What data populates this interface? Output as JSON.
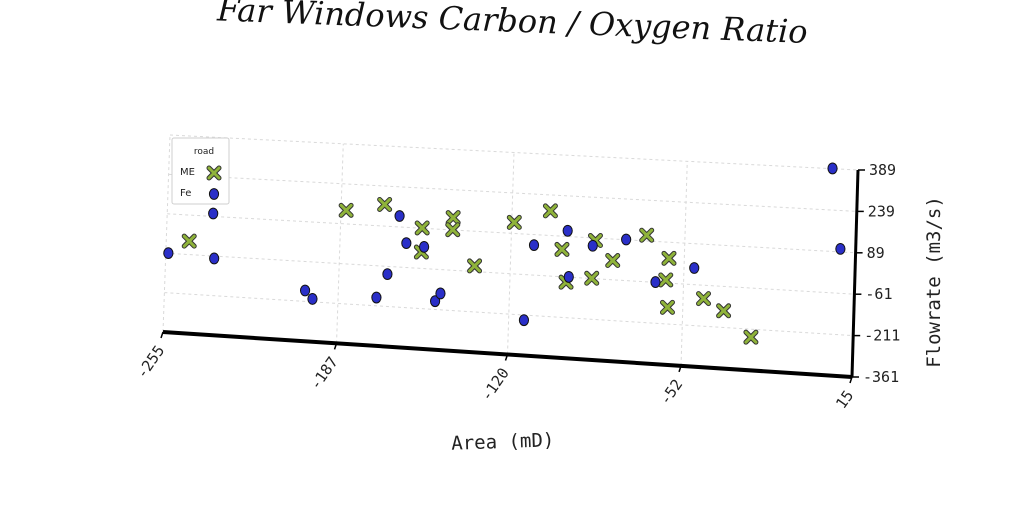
{
  "chart_data": {
    "type": "scatter",
    "title": "Far Windows Carbon / Oxygen Ratio",
    "xlabel": "Area (mD)",
    "ylabel": "Flowrate (m3/s)",
    "xlim": [
      -255,
      15
    ],
    "ylim": [
      -361,
      389
    ],
    "x_ticks": [
      "-255",
      "-187",
      "-120",
      "-52",
      "15"
    ],
    "y_ticks": [
      "-361",
      "-211",
      "-61",
      "89",
      "239",
      "389"
    ],
    "grid": true,
    "legend": {
      "title": "road",
      "position": "top-left"
    },
    "series": [
      {
        "name": "ME",
        "marker": "x",
        "color": "#8fb33a",
        "points": [
          [
            -246,
            -10
          ],
          [
            -185,
            140
          ],
          [
            -170,
            170
          ],
          [
            -155,
            90
          ],
          [
            -155,
            0
          ],
          [
            -143,
            135
          ],
          [
            -143,
            90
          ],
          [
            -134,
            -40
          ],
          [
            -119,
            130
          ],
          [
            -105,
            180
          ],
          [
            -100,
            40
          ],
          [
            -98,
            -80
          ],
          [
            -87,
            80
          ],
          [
            -88,
            -60
          ],
          [
            -80,
            10
          ],
          [
            -67,
            110
          ],
          [
            -59,
            -50
          ],
          [
            -58,
            30
          ],
          [
            -58,
            -150
          ],
          [
            -44,
            -110
          ],
          [
            -36,
            -150
          ],
          [
            -25,
            -240
          ]
        ]
      },
      {
        "name": "Fe",
        "marker": "o",
        "color": "#2a2fc8",
        "points": [
          [
            -254,
            -60
          ],
          [
            -237,
            100
          ],
          [
            -236,
            -70
          ],
          [
            -200,
            -170
          ],
          [
            -197,
            -200
          ],
          [
            -172,
            -180
          ],
          [
            -168,
            -90
          ],
          [
            -164,
            130
          ],
          [
            -161,
            30
          ],
          [
            -154,
            20
          ],
          [
            -149,
            -180
          ],
          [
            -147,
            -150
          ],
          [
            -114,
            -230
          ],
          [
            -111,
            50
          ],
          [
            -98,
            110
          ],
          [
            -97,
            -60
          ],
          [
            -88,
            60
          ],
          [
            -75,
            90
          ],
          [
            -63,
            -60
          ],
          [
            -48,
            0
          ],
          [
            5,
            390
          ],
          [
            9,
            100
          ]
        ]
      }
    ]
  }
}
